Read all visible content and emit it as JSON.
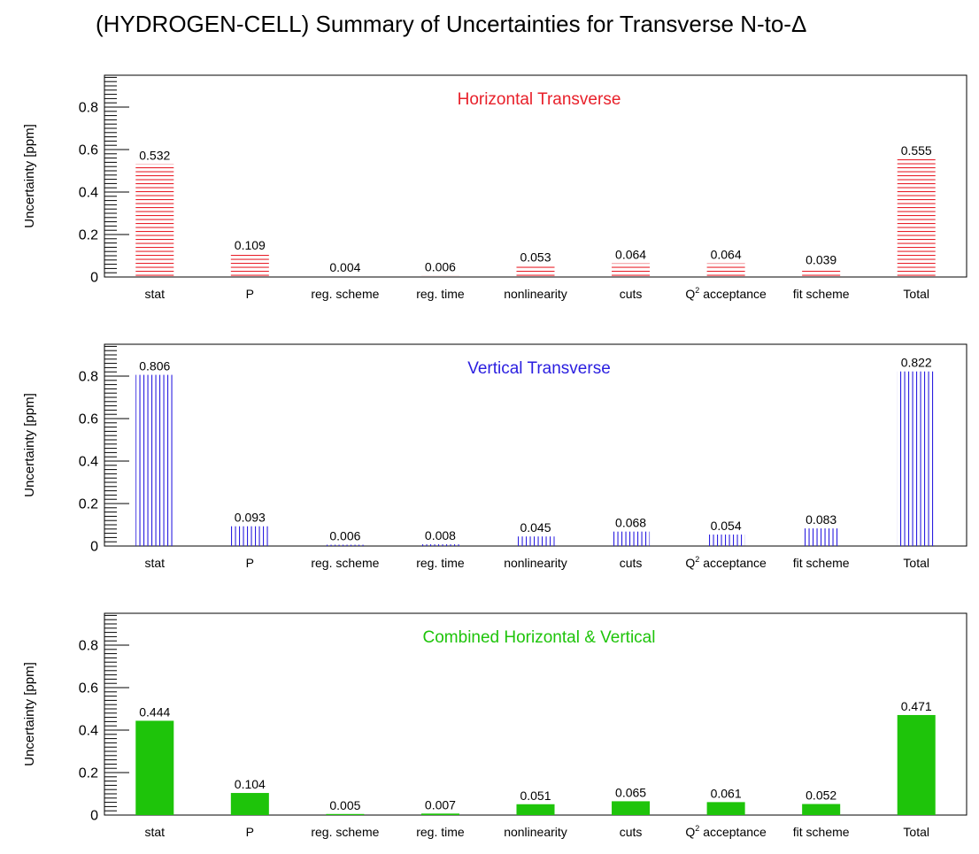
{
  "page": {
    "title": "(HYDROGEN-CELL) Summary of Uncertainties for Transverse N-to-Δ"
  },
  "chart_data": [
    {
      "type": "bar",
      "title": "Horizontal Transverse",
      "ylabel": "Uncertainty [ppm]",
      "xlabel": "",
      "ylim": [
        0,
        0.95
      ],
      "yticks": [
        "0",
        "0.2",
        "0.4",
        "0.6",
        "0.8"
      ],
      "categories": [
        "stat",
        "P",
        "reg. scheme",
        "reg. time",
        "nonlinearity",
        "cuts",
        "Q2 acceptance",
        "fit scheme",
        "Total"
      ],
      "values": [
        0.532,
        0.109,
        0.004,
        0.006,
        0.053,
        0.064,
        0.064,
        0.039,
        0.555
      ],
      "labels": [
        "0.532",
        "0.109",
        "0.004",
        "0.006",
        "0.053",
        "0.064",
        "0.064",
        "0.039",
        "0.555"
      ],
      "color": "#e8202a",
      "fill": "horizontal-hatch"
    },
    {
      "type": "bar",
      "title": "Vertical Transverse",
      "ylabel": "Uncertainty [ppm]",
      "xlabel": "",
      "ylim": [
        0,
        0.95
      ],
      "yticks": [
        "0",
        "0.2",
        "0.4",
        "0.6",
        "0.8"
      ],
      "categories": [
        "stat",
        "P",
        "reg. scheme",
        "reg. time",
        "nonlinearity",
        "cuts",
        "Q2 acceptance",
        "fit scheme",
        "Total"
      ],
      "values": [
        0.806,
        0.093,
        0.006,
        0.008,
        0.045,
        0.068,
        0.054,
        0.083,
        0.822
      ],
      "labels": [
        "0.806",
        "0.093",
        "0.006",
        "0.008",
        "0.045",
        "0.068",
        "0.054",
        "0.083",
        "0.822"
      ],
      "color": "#2a1ee0",
      "fill": "vertical-hatch"
    },
    {
      "type": "bar",
      "title": "Combined Horizontal & Vertical",
      "ylabel": "Uncertainty [ppm]",
      "xlabel": "",
      "ylim": [
        0,
        0.95
      ],
      "yticks": [
        "0",
        "0.2",
        "0.4",
        "0.6",
        "0.8"
      ],
      "categories": [
        "stat",
        "P",
        "reg. scheme",
        "reg. time",
        "nonlinearity",
        "cuts",
        "Q2 acceptance",
        "fit scheme",
        "Total"
      ],
      "values": [
        0.444,
        0.104,
        0.005,
        0.007,
        0.051,
        0.065,
        0.061,
        0.052,
        0.471
      ],
      "labels": [
        "0.444",
        "0.104",
        "0.005",
        "0.007",
        "0.051",
        "0.065",
        "0.061",
        "0.052",
        "0.471"
      ],
      "color": "#1ec40a",
      "fill": "solid"
    }
  ]
}
